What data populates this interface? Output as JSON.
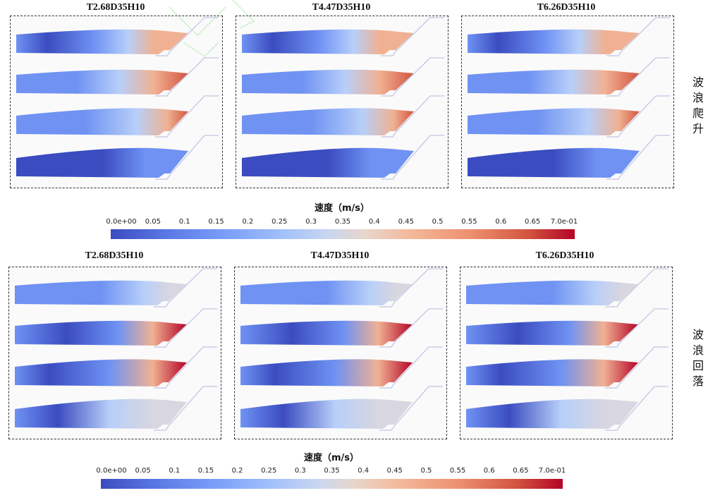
{
  "top": {
    "titles": [
      "T2.68D35H10",
      "T4.47D35H10",
      "T6.26D35H10"
    ],
    "row_label": [
      "波",
      "浪",
      "爬",
      "升"
    ]
  },
  "bottom": {
    "titles": [
      "T2.68D35H10",
      "T4.47D35H10",
      "T6.26D35H10"
    ],
    "row_label": [
      "波",
      "浪",
      "回",
      "落"
    ]
  },
  "colorbar": {
    "title": "速度（m/s）",
    "ticks": [
      "0.0e+00",
      "0.05",
      "0.1",
      "0.15",
      "0.2",
      "0.25",
      "0.3",
      "0.35",
      "0.4",
      "0.45",
      "0.5",
      "0.55",
      "0.6",
      "0.65",
      "7.0e-01"
    ],
    "colormap": [
      "#3b4cc0",
      "#b40426"
    ]
  }
}
